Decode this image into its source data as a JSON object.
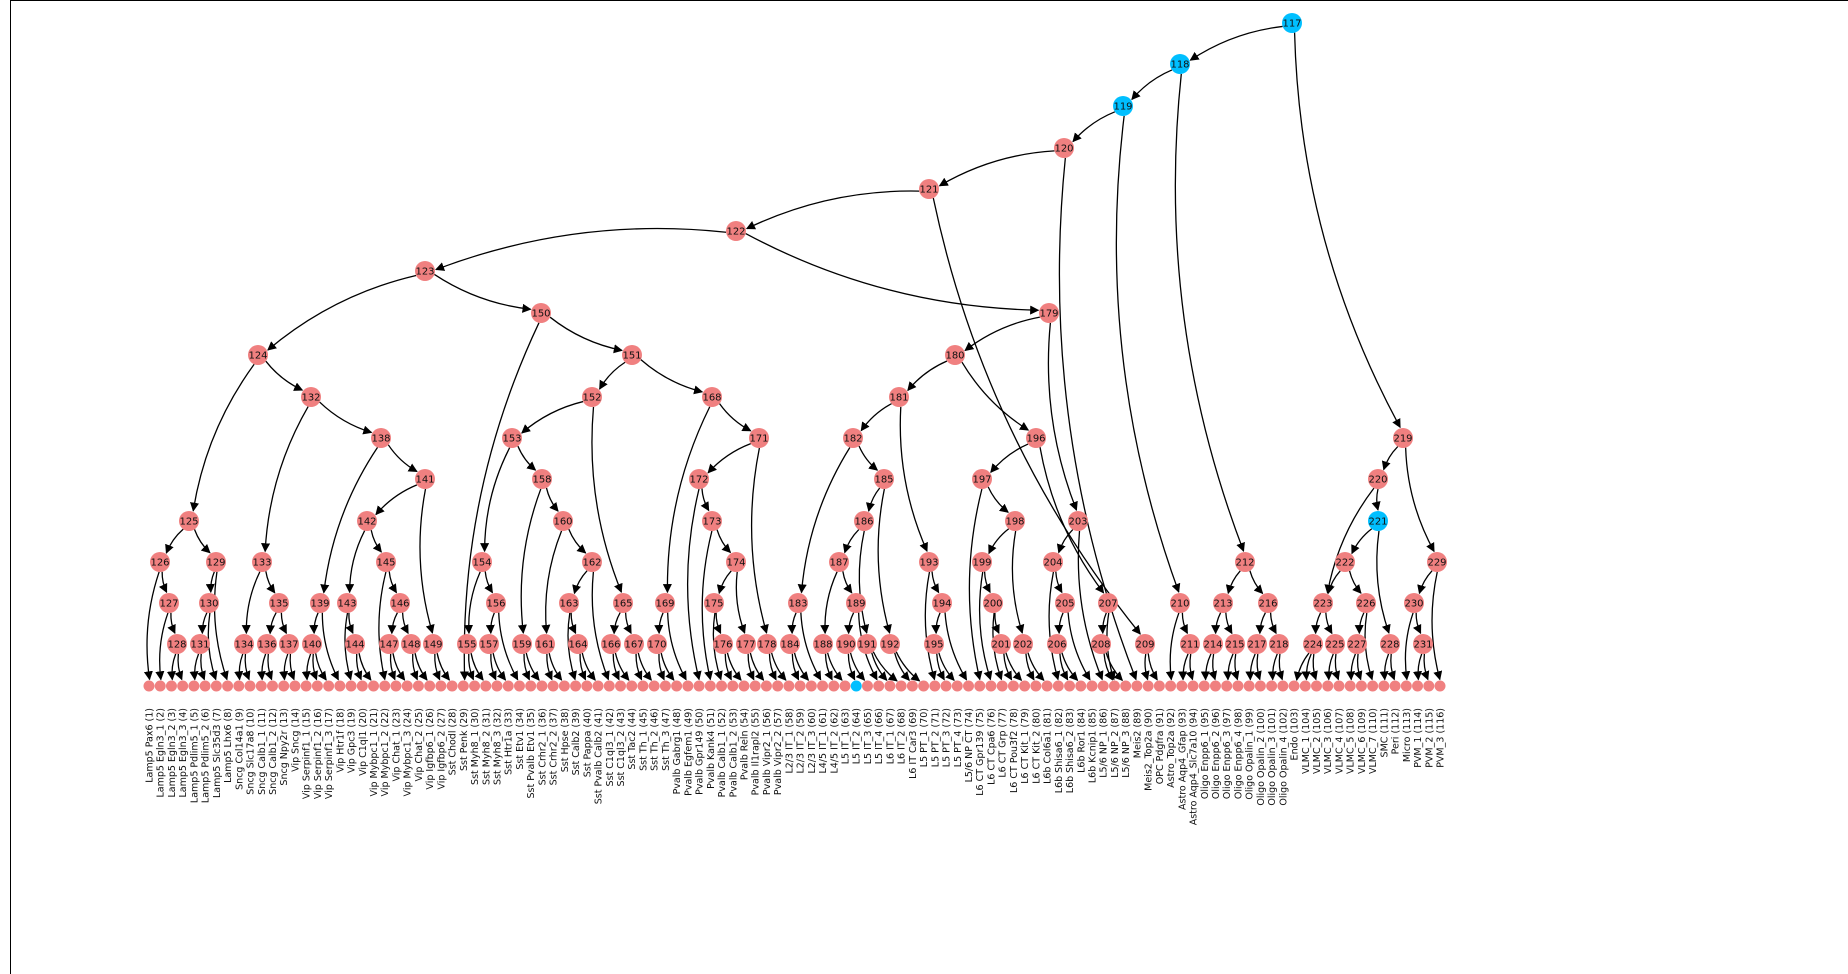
{
  "colors": {
    "internal": "#F08080",
    "highlight": "#00BFFF",
    "edge": "#000000",
    "leaf": "#F08080"
  },
  "highlighted_nodes": [
    "117",
    "118",
    "119",
    "221"
  ],
  "highlighted_leaves": [
    64
  ],
  "internal_nodes": [
    {
      "id": "117",
      "label": "117",
      "children": [
        "n118",
        "n219"
      ]
    },
    {
      "id": "118",
      "label": "118",
      "children": [
        "n119",
        "n212"
      ]
    },
    {
      "id": "119",
      "label": "119",
      "children": [
        "n120",
        "n210"
      ]
    },
    {
      "id": "120",
      "label": "120",
      "children": [
        "n121",
        "l89"
      ]
    },
    {
      "id": "121",
      "label": "121",
      "children": [
        "n122",
        "n209"
      ]
    },
    {
      "id": "122",
      "label": "122",
      "children": [
        "n123",
        "n179"
      ]
    },
    {
      "id": "123",
      "label": "123",
      "children": [
        "n124",
        "n150"
      ]
    },
    {
      "id": "124",
      "label": "124",
      "children": [
        "n125",
        "n132"
      ]
    },
    {
      "id": "125",
      "label": "125",
      "children": [
        "n126",
        "n129"
      ]
    },
    {
      "id": "126",
      "label": "126",
      "children": [
        "l1",
        "n127"
      ]
    },
    {
      "id": "127",
      "label": "127",
      "children": [
        "l2",
        "n128"
      ]
    },
    {
      "id": "128",
      "label": "128",
      "children": [
        "l3",
        "l4"
      ]
    },
    {
      "id": "129",
      "label": "129",
      "children": [
        "n130",
        "l8"
      ]
    },
    {
      "id": "130",
      "label": "130",
      "children": [
        "n131",
        "l7"
      ]
    },
    {
      "id": "131",
      "label": "131",
      "children": [
        "l5",
        "l6"
      ]
    },
    {
      "id": "132",
      "label": "132",
      "children": [
        "n133",
        "n138"
      ]
    },
    {
      "id": "133",
      "label": "133",
      "children": [
        "n134",
        "n135"
      ]
    },
    {
      "id": "134",
      "label": "134",
      "children": [
        "l9",
        "l10"
      ]
    },
    {
      "id": "135",
      "label": "135",
      "children": [
        "n136",
        "n137"
      ]
    },
    {
      "id": "136",
      "label": "136",
      "children": [
        "l11",
        "l12"
      ]
    },
    {
      "id": "137",
      "label": "137",
      "children": [
        "l13",
        "l14"
      ]
    },
    {
      "id": "138",
      "label": "138",
      "children": [
        "n139",
        "n141"
      ]
    },
    {
      "id": "139",
      "label": "139",
      "children": [
        "n140",
        "l18"
      ]
    },
    {
      "id": "140",
      "label": "140",
      "children": [
        "l15",
        "l16",
        "l17"
      ]
    },
    {
      "id": "141",
      "label": "141",
      "children": [
        "n142",
        "n149"
      ]
    },
    {
      "id": "142",
      "label": "142",
      "children": [
        "n143",
        "n145"
      ]
    },
    {
      "id": "143",
      "label": "143",
      "children": [
        "l19",
        "n144"
      ]
    },
    {
      "id": "144",
      "label": "144",
      "children": [
        "l20",
        "l21"
      ]
    },
    {
      "id": "145",
      "label": "145",
      "children": [
        "l22",
        "n146"
      ]
    },
    {
      "id": "146",
      "label": "146",
      "children": [
        "n147",
        "n148"
      ]
    },
    {
      "id": "147",
      "label": "147",
      "children": [
        "l23",
        "l24"
      ]
    },
    {
      "id": "148",
      "label": "148",
      "children": [
        "l25",
        "l26"
      ]
    },
    {
      "id": "149",
      "label": "149",
      "children": [
        "l27",
        "l28"
      ]
    },
    {
      "id": "150",
      "label": "150",
      "children": [
        "l29",
        "n151"
      ]
    },
    {
      "id": "151",
      "label": "151",
      "children": [
        "n152",
        "n168"
      ]
    },
    {
      "id": "152",
      "label": "152",
      "children": [
        "n153",
        "n165"
      ]
    },
    {
      "id": "153",
      "label": "153",
      "children": [
        "n154",
        "n158"
      ]
    },
    {
      "id": "154",
      "label": "154",
      "children": [
        "n155",
        "n156"
      ]
    },
    {
      "id": "155",
      "label": "155",
      "children": [
        "l30",
        "l31"
      ]
    },
    {
      "id": "156",
      "label": "156",
      "children": [
        "n157",
        "l34"
      ]
    },
    {
      "id": "157",
      "label": "157",
      "children": [
        "l32",
        "l33"
      ]
    },
    {
      "id": "158",
      "label": "158",
      "children": [
        "n159",
        "n160"
      ]
    },
    {
      "id": "159",
      "label": "159",
      "children": [
        "l35",
        "l36"
      ]
    },
    {
      "id": "160",
      "label": "160",
      "children": [
        "n161",
        "n162"
      ]
    },
    {
      "id": "161",
      "label": "161",
      "children": [
        "l37",
        "l38"
      ]
    },
    {
      "id": "162",
      "label": "162",
      "children": [
        "n163",
        "l42"
      ]
    },
    {
      "id": "163",
      "label": "163",
      "children": [
        "l39",
        "n164"
      ]
    },
    {
      "id": "164",
      "label": "164",
      "children": [
        "l40",
        "l41"
      ]
    },
    {
      "id": "165",
      "label": "165",
      "children": [
        "n166",
        "n167"
      ]
    },
    {
      "id": "166",
      "label": "166",
      "children": [
        "l43",
        "l44"
      ]
    },
    {
      "id": "167",
      "label": "167",
      "children": [
        "l45",
        "l46"
      ]
    },
    {
      "id": "168",
      "label": "168",
      "children": [
        "n169",
        "n171"
      ]
    },
    {
      "id": "169",
      "label": "169",
      "children": [
        "n170",
        "l49"
      ]
    },
    {
      "id": "170",
      "label": "170",
      "children": [
        "l47",
        "l48"
      ]
    },
    {
      "id": "171",
      "label": "171",
      "children": [
        "n172",
        "n178"
      ]
    },
    {
      "id": "172",
      "label": "172",
      "children": [
        "l50",
        "n173"
      ]
    },
    {
      "id": "173",
      "label": "173",
      "children": [
        "l51",
        "n174"
      ]
    },
    {
      "id": "174",
      "label": "174",
      "children": [
        "n175",
        "n177"
      ]
    },
    {
      "id": "175",
      "label": "175",
      "children": [
        "l52",
        "n176"
      ]
    },
    {
      "id": "176",
      "label": "176",
      "children": [
        "l53",
        "l54"
      ]
    },
    {
      "id": "177",
      "label": "177",
      "children": [
        "l55",
        "l56"
      ]
    },
    {
      "id": "178",
      "label": "178",
      "children": [
        "l57",
        "l58"
      ]
    },
    {
      "id": "179",
      "label": "179",
      "children": [
        "n180",
        "n203"
      ]
    },
    {
      "id": "180",
      "label": "180",
      "children": [
        "n181",
        "n196"
      ]
    },
    {
      "id": "181",
      "label": "181",
      "children": [
        "n182",
        "n193"
      ]
    },
    {
      "id": "182",
      "label": "182",
      "children": [
        "n183",
        "n185"
      ]
    },
    {
      "id": "183",
      "label": "183",
      "children": [
        "n184",
        "l61"
      ]
    },
    {
      "id": "184",
      "label": "184",
      "children": [
        "l59",
        "l60"
      ]
    },
    {
      "id": "185",
      "label": "185",
      "children": [
        "n186",
        "n192"
      ]
    },
    {
      "id": "186",
      "label": "186",
      "children": [
        "n187",
        "n191"
      ]
    },
    {
      "id": "187",
      "label": "187",
      "children": [
        "n188",
        "n189"
      ]
    },
    {
      "id": "188",
      "label": "188",
      "children": [
        "l62",
        "l63"
      ]
    },
    {
      "id": "189",
      "label": "189",
      "children": [
        "n190",
        "l66"
      ]
    },
    {
      "id": "190",
      "label": "190",
      "children": [
        "l64",
        "l65"
      ]
    },
    {
      "id": "191",
      "label": "191",
      "children": [
        "l67",
        "l68"
      ]
    },
    {
      "id": "192",
      "label": "192",
      "children": [
        "l69",
        "l70"
      ]
    },
    {
      "id": "193",
      "label": "193",
      "children": [
        "l71",
        "n194"
      ]
    },
    {
      "id": "194",
      "label": "194",
      "children": [
        "n195",
        "l74"
      ]
    },
    {
      "id": "195",
      "label": "195",
      "children": [
        "l72",
        "l73"
      ]
    },
    {
      "id": "196",
      "label": "196",
      "children": [
        "n197",
        "n207"
      ]
    },
    {
      "id": "197",
      "label": "197",
      "children": [
        "l75",
        "n198"
      ]
    },
    {
      "id": "198",
      "label": "198",
      "children": [
        "n199",
        "n202"
      ]
    },
    {
      "id": "199",
      "label": "199",
      "children": [
        "l76",
        "n200"
      ]
    },
    {
      "id": "200",
      "label": "200",
      "children": [
        "l77",
        "n201"
      ]
    },
    {
      "id": "201",
      "label": "201",
      "children": [
        "l78",
        "l79"
      ]
    },
    {
      "id": "202",
      "label": "202",
      "children": [
        "l80",
        "l81"
      ]
    },
    {
      "id": "203",
      "label": "203",
      "children": [
        "n204",
        "l86"
      ]
    },
    {
      "id": "204",
      "label": "204",
      "children": [
        "l82",
        "n205"
      ]
    },
    {
      "id": "205",
      "label": "205",
      "children": [
        "n206",
        "l85"
      ]
    },
    {
      "id": "206",
      "label": "206",
      "children": [
        "l83",
        "l84"
      ]
    },
    {
      "id": "207",
      "label": "207",
      "children": [
        "n208",
        "l87"
      ]
    },
    {
      "id": "208",
      "label": "208",
      "children": [
        "l88",
        "l87"
      ]
    },
    {
      "id": "209",
      "label": "209",
      "children": [
        "l90",
        "l91"
      ]
    },
    {
      "id": "210",
      "label": "210",
      "children": [
        "l92",
        "n211"
      ]
    },
    {
      "id": "211",
      "label": "211",
      "children": [
        "l93",
        "l94"
      ]
    },
    {
      "id": "212",
      "label": "212",
      "children": [
        "n213",
        "n216"
      ]
    },
    {
      "id": "213",
      "label": "213",
      "children": [
        "n214",
        "n215"
      ]
    },
    {
      "id": "214",
      "label": "214",
      "children": [
        "l95",
        "l96"
      ]
    },
    {
      "id": "215",
      "label": "215",
      "children": [
        "l97",
        "l98"
      ]
    },
    {
      "id": "216",
      "label": "216",
      "children": [
        "n217",
        "n218"
      ]
    },
    {
      "id": "217",
      "label": "217",
      "children": [
        "l99",
        "l100"
      ]
    },
    {
      "id": "218",
      "label": "218",
      "children": [
        "l101",
        "l102"
      ]
    },
    {
      "id": "219",
      "label": "219",
      "children": [
        "n220",
        "n229"
      ]
    },
    {
      "id": "220",
      "label": "220",
      "children": [
        "n221",
        "n223"
      ]
    },
    {
      "id": "221",
      "label": "221",
      "children": [
        "n222",
        "n228"
      ]
    },
    {
      "id": "222",
      "label": "222",
      "children": [
        "n223",
        "n226"
      ]
    },
    {
      "id": "223",
      "label": "223",
      "children": [
        "n224",
        "n225"
      ]
    },
    {
      "id": "224",
      "label": "224",
      "children": [
        "l103",
        "l104",
        "l105"
      ]
    },
    {
      "id": "225",
      "label": "225",
      "children": [
        "l106",
        "l107"
      ]
    },
    {
      "id": "226",
      "label": "226",
      "children": [
        "n227",
        "l110"
      ]
    },
    {
      "id": "227",
      "label": "227",
      "children": [
        "l108",
        "l109"
      ]
    },
    {
      "id": "228",
      "label": "228",
      "children": [
        "l111",
        "l112"
      ]
    },
    {
      "id": "229",
      "label": "229",
      "children": [
        "n230",
        "l116"
      ]
    },
    {
      "id": "230",
      "label": "230",
      "children": [
        "l113",
        "n231"
      ]
    },
    {
      "id": "231",
      "label": "231",
      "children": [
        "l114",
        "l115"
      ]
    }
  ],
  "leaves": [
    "Lamp5 Pax6 (1)",
    "Lamp5 Egln3_1 (2)",
    "Lamp5 Egln3_2 (3)",
    "Lamp5 Egln3_3 (4)",
    "Lamp5 Pdlim5_1 (5)",
    "Lamp5 Pdlim5_2 (6)",
    "Lamp5 Slc35d3 (7)",
    "Lamp5 Lhx6 (8)",
    "Sncg Col14a1 (9)",
    "Sncg Slc17a8 (10)",
    "Sncg Calb1_1 (11)",
    "Sncg Calb1_2 (12)",
    "Sncg Npy2r (13)",
    "Vip Sncg (14)",
    "Vip Serpinf1_1 (15)",
    "Vip Serpinf1_2 (16)",
    "Vip Serpinf1_3 (17)",
    "Vip Htr1f (18)",
    "Vip Gpc3 (19)",
    "Vip C1ql1 (20)",
    "Vip Mybpc1_1 (21)",
    "Vip Mybpc1_2 (22)",
    "Vip Chat_1 (23)",
    "Vip Mybpc1_3 (24)",
    "Vip Chat_2 (25)",
    "Vip Igfbp6_1 (26)",
    "Vip Igfbp6_2 (27)",
    "Sst Chodl (28)",
    "Sst Penk (29)",
    "Sst Myh8_1 (30)",
    "Sst Myh8_2 (31)",
    "Sst Myh8_3 (32)",
    "Sst Htr1a (33)",
    "Sst Etv1 (34)",
    "Sst Pvalb Etv1 (35)",
    "Sst Crhr2_1 (36)",
    "Sst Crhr2_2 (37)",
    "Sst Hpse (38)",
    "Sst Calb2 (39)",
    "Sst Pappa (40)",
    "Sst Pvalb Calb2 (41)",
    "Sst C1ql3_1 (42)",
    "Sst C1ql3_2 (43)",
    "Sst Tac2 (44)",
    "Sst Th_1 (45)",
    "Sst Th_2 (46)",
    "Sst Th_3 (47)",
    "Pvalb Gabrg1 (48)",
    "Pvalb Egfem1 (49)",
    "Pvalb Gpr149 (50)",
    "Pvalb Kank4 (51)",
    "Pvalb Calb1_1 (52)",
    "Pvalb Calb1_2 (53)",
    "Pvalb Reln (54)",
    "Pvalb Il1rapl2 (55)",
    "Pvalb Vipr2_1 (56)",
    "Pvalb Vipr2_2 (57)",
    "L2/3 IT_1 (58)",
    "L2/3 IT_2 (59)",
    "L2/3 IT_3 (60)",
    "L4/5 IT_1 (61)",
    "L4/5 IT_2 (62)",
    "L5 IT_1 (63)",
    "L5 IT_2 (64)",
    "L5 IT_3 (65)",
    "L5 IT_4 (66)",
    "L6 IT_1 (67)",
    "L6 IT_2 (68)",
    "L6 IT Car3 (69)",
    "L5 PT_1 (70)",
    "L5 PT_2 (71)",
    "L5 PT_3 (72)",
    "L5 PT_4 (73)",
    "L5/6 NP CT (74)",
    "L6 CT Gpr139 (75)",
    "L6 CT Cpa6 (76)",
    "L6 CT Grp (77)",
    "L6 CT Pou3f2 (78)",
    "L6 CT Kit_1 (79)",
    "L6 CT Kit_2 (80)",
    "L6b Col6a1 (81)",
    "L6b Shisa6_1 (82)",
    "L6b Shisa6_2 (83)",
    "L6b Ror1 (84)",
    "L6b Kcnip1 (85)",
    "L5/6 NP_1 (86)",
    "L5/6 NP_2 (87)",
    "L5/6 NP_3 (88)",
    "Meis2 (89)",
    "Meis2_Top2a (90)",
    "OPC Pdgfra (91)",
    "Astro_Top2a (92)",
    "Astro Aqp4_Gfap (93)",
    "Astro Aqp4_Slc7a10 (94)",
    "Oligo Enpp6_1 (95)",
    "Oligo Enpp6_2 (96)",
    "Oligo Enpp6_3 (97)",
    "Oligo Enpp6_4 (98)",
    "Oligo Opalin_1 (99)",
    "Oligo Opalin_2 (100)",
    "Oligo Opalin_3 (101)",
    "Oligo Opalin_4 (102)",
    "Endo (103)",
    "VLMC_1 (104)",
    "VLMC_2 (105)",
    "VLMC_3 (106)",
    "VLMC_4 (107)",
    "VLMC_5 (108)",
    "VLMC_6 (109)",
    "VLMC_7 (110)",
    "SMC (111)",
    "Peri (112)",
    "Micro (113)",
    "PVM_1 (114)",
    "PVM_2 (115)",
    "PVM_3 (116)"
  ]
}
